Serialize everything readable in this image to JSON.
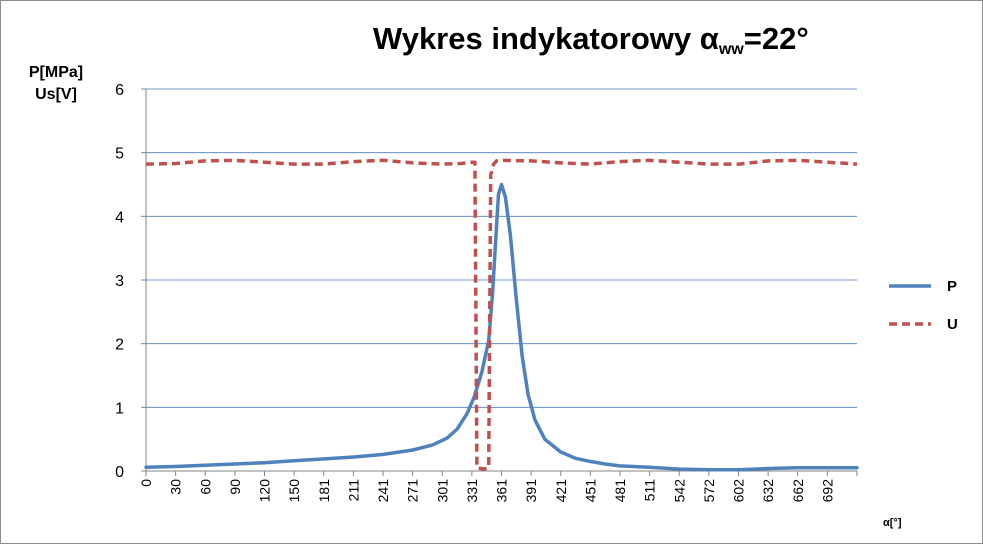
{
  "chart_data": {
    "type": "line",
    "title": {
      "main": "Wykres  indykatorowy α",
      "sub": "ww",
      "tail": "=22°"
    },
    "ylabel_lines": [
      "P[MPa]",
      "Us[V]"
    ],
    "xlabel": "α[°]",
    "ylim": [
      0,
      6
    ],
    "y_ticks": [
      "0",
      "1",
      "2",
      "3",
      "4",
      "5",
      "6"
    ],
    "x_range": [
      0,
      722
    ],
    "x_ticks": [
      "0",
      "30",
      "60",
      "90",
      "120",
      "150",
      "181",
      "211",
      "241",
      "271",
      "301",
      "331",
      "361",
      "391",
      "421",
      "451",
      "481",
      "511",
      "542",
      "572",
      "602",
      "632",
      "662",
      "692"
    ],
    "grid": "horizontal",
    "legend_position": "right",
    "colors": {
      "P": "#4f81bd",
      "U": "#c0504d"
    },
    "series": [
      {
        "name": "P",
        "style": "solid",
        "points": [
          [
            0,
            0.06
          ],
          [
            30,
            0.07
          ],
          [
            60,
            0.09
          ],
          [
            90,
            0.11
          ],
          [
            120,
            0.13
          ],
          [
            150,
            0.16
          ],
          [
            181,
            0.19
          ],
          [
            211,
            0.22
          ],
          [
            241,
            0.26
          ],
          [
            271,
            0.33
          ],
          [
            291,
            0.41
          ],
          [
            306,
            0.52
          ],
          [
            316,
            0.66
          ],
          [
            326,
            0.9
          ],
          [
            333,
            1.15
          ],
          [
            341,
            1.55
          ],
          [
            348,
            2.05
          ],
          [
            352,
            2.8
          ],
          [
            355,
            3.6
          ],
          [
            358,
            4.35
          ],
          [
            361,
            4.5
          ],
          [
            365,
            4.3
          ],
          [
            370,
            3.7
          ],
          [
            376,
            2.7
          ],
          [
            382,
            1.8
          ],
          [
            388,
            1.2
          ],
          [
            395,
            0.8
          ],
          [
            405,
            0.5
          ],
          [
            421,
            0.3
          ],
          [
            436,
            0.2
          ],
          [
            451,
            0.15
          ],
          [
            466,
            0.11
          ],
          [
            481,
            0.08
          ],
          [
            511,
            0.06
          ],
          [
            542,
            0.03
          ],
          [
            572,
            0.02
          ],
          [
            602,
            0.02
          ],
          [
            632,
            0.04
          ],
          [
            662,
            0.05
          ],
          [
            692,
            0.05
          ],
          [
            722,
            0.05
          ]
        ]
      },
      {
        "name": "U",
        "style": "dashed",
        "points": [
          [
            0,
            4.82
          ],
          [
            30,
            4.83
          ],
          [
            60,
            4.87
          ],
          [
            90,
            4.88
          ],
          [
            120,
            4.85
          ],
          [
            150,
            4.82
          ],
          [
            181,
            4.82
          ],
          [
            211,
            4.86
          ],
          [
            241,
            4.88
          ],
          [
            271,
            4.84
          ],
          [
            301,
            4.82
          ],
          [
            320,
            4.83
          ],
          [
            331,
            4.85
          ],
          [
            334,
            4.85
          ],
          [
            336,
            0.05
          ],
          [
            343,
            0.03
          ],
          [
            348,
            0.05
          ],
          [
            350,
            4.65
          ],
          [
            353,
            4.82
          ],
          [
            356,
            4.87
          ],
          [
            361,
            4.88
          ],
          [
            391,
            4.87
          ],
          [
            421,
            4.84
          ],
          [
            451,
            4.82
          ],
          [
            481,
            4.86
          ],
          [
            511,
            4.88
          ],
          [
            542,
            4.85
          ],
          [
            572,
            4.82
          ],
          [
            602,
            4.82
          ],
          [
            632,
            4.87
          ],
          [
            662,
            4.88
          ],
          [
            692,
            4.85
          ],
          [
            722,
            4.82
          ]
        ]
      }
    ]
  }
}
